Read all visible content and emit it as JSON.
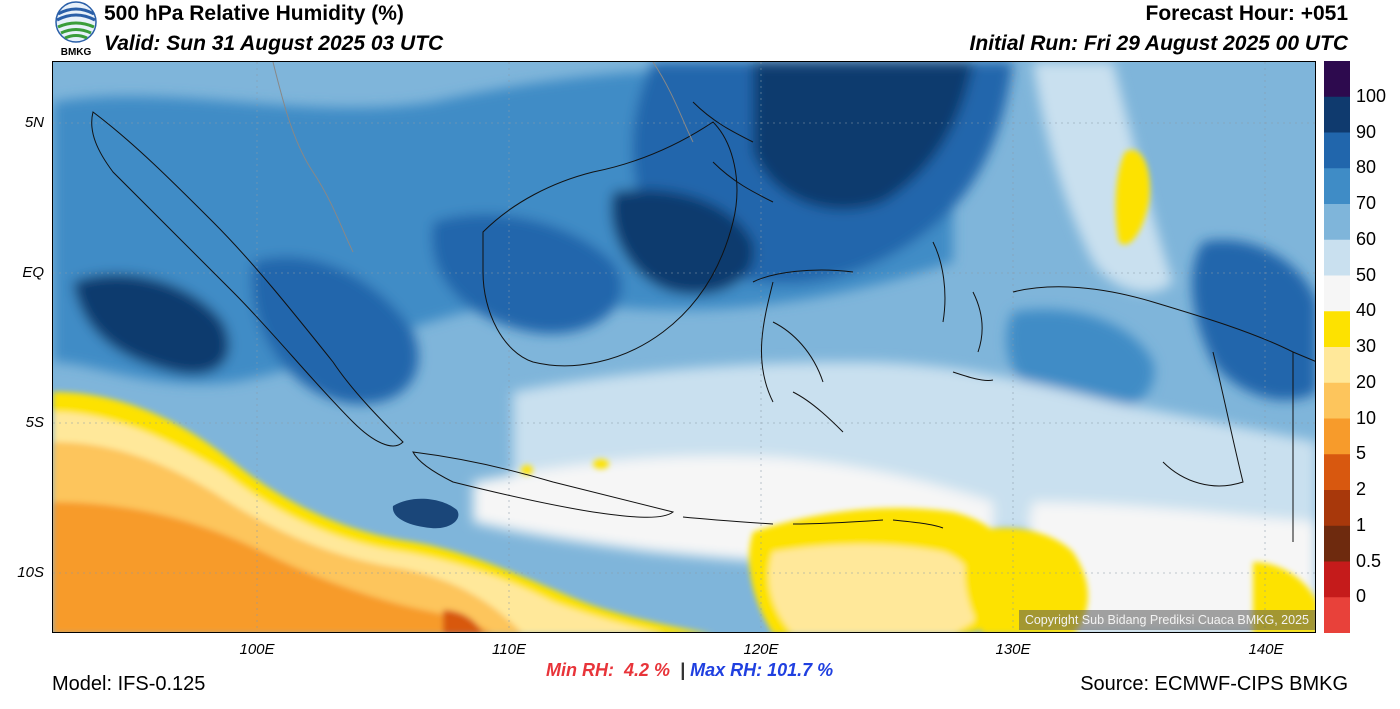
{
  "header": {
    "title": "500 hPa Relative Humidity (%)",
    "valid": "Valid: Sun 31 August 2025 03 UTC",
    "forecast_hour": "Forecast Hour: +051",
    "initial_run": "Initial Run: Fri 29 August 2025 00 UTC",
    "logo_text": "BMKG"
  },
  "axes": {
    "lat_labels": [
      "5N",
      "EQ",
      "5S",
      "10S"
    ],
    "lon_labels": [
      "100E",
      "110E",
      "120E",
      "130E",
      "140E"
    ]
  },
  "colorbar": {
    "labels": [
      "100",
      "90",
      "80",
      "70",
      "60",
      "50",
      "40",
      "30",
      "20",
      "10",
      "5",
      "2",
      "1",
      "0.5",
      "0"
    ],
    "colors": [
      "#2d0a4e",
      "#0f3a6e",
      "#2166ac",
      "#3f8cc6",
      "#7fb5da",
      "#c9e0ef",
      "#f6f6f6",
      "#fde200",
      "#ffe89a",
      "#fdc55c",
      "#f79b2b",
      "#d8580f",
      "#a8380b",
      "#6e2a0e",
      "#c51b1b",
      "#e8413a"
    ]
  },
  "stats": {
    "min_label": "Min RH:",
    "min_value": "4.2 %",
    "separator": "|",
    "max_label": "Max RH:",
    "max_value": "101.7 %"
  },
  "footer": {
    "model": "Model: IFS-0.125",
    "source": "Source: ECMWF-CIPS BMKG",
    "copyright": "Copyright Sub Bidang Prediksi Cuaca BMKG, 2025"
  }
}
